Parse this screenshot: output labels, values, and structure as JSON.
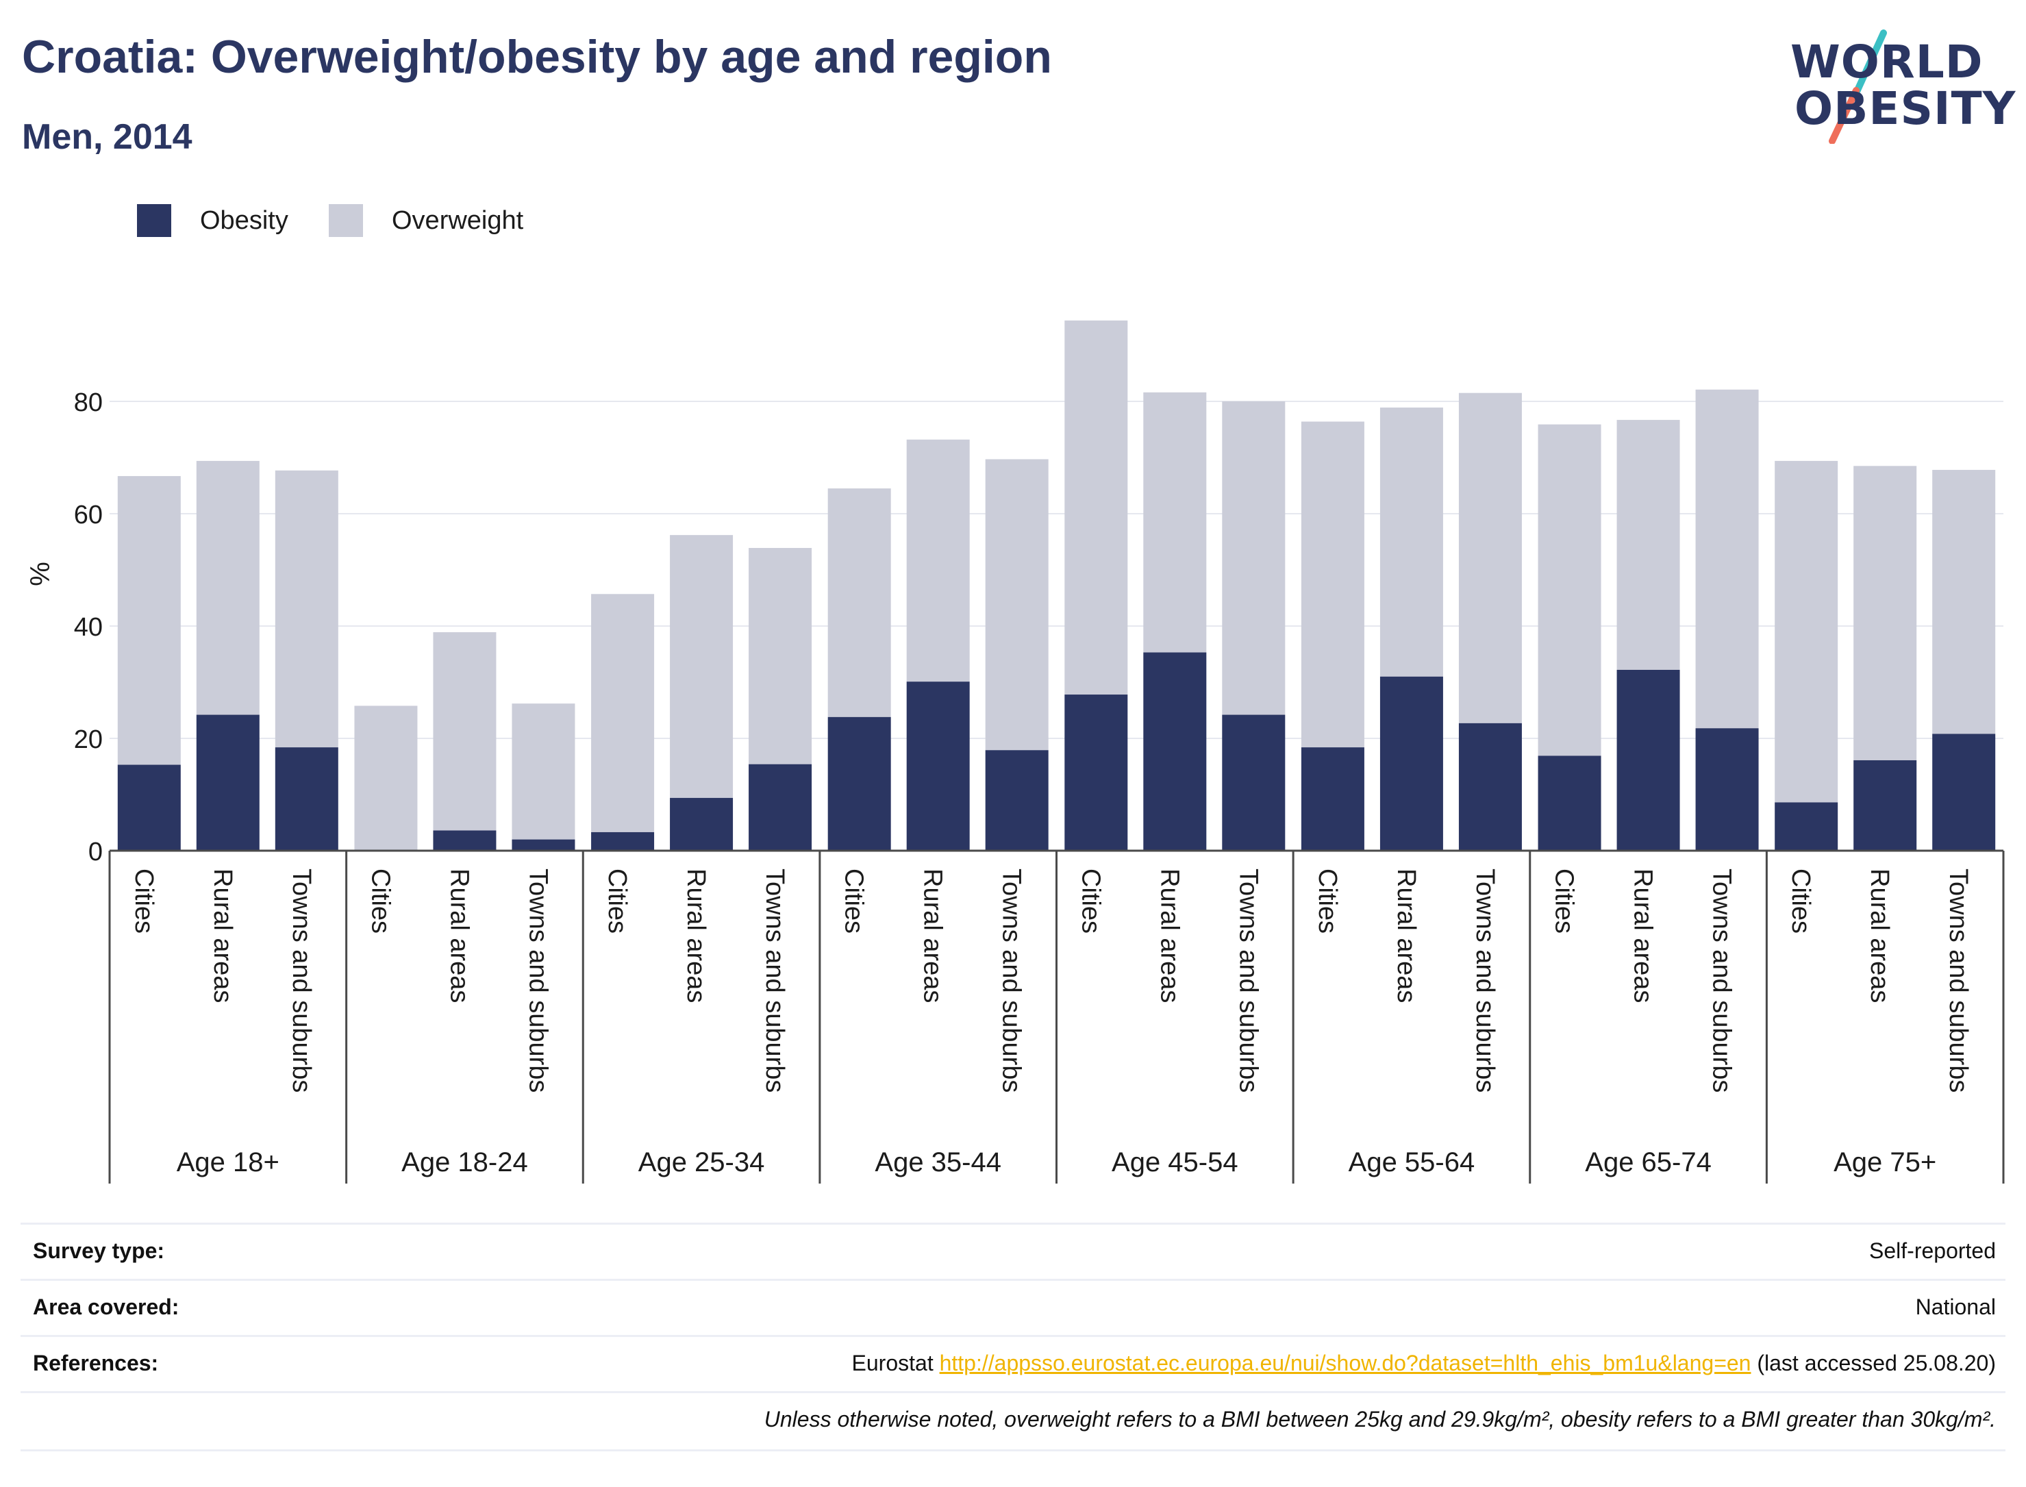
{
  "header": {
    "title": "Croatia: Overweight/obesity by age and region",
    "subtitle": "Men, 2014"
  },
  "logo": {
    "line1": "WORLD",
    "line2": "OBESITY",
    "colors": {
      "text": "#2b3662",
      "slash_top": "#3bbfc4",
      "slash_bottom": "#ef6e5a"
    }
  },
  "colors": {
    "obesity": "#2b3662",
    "overweight": "#cbcdd9",
    "grid": "#e6e8ef",
    "axis": "#4a4a4a",
    "link": "#f0b400"
  },
  "chart_data": {
    "type": "bar",
    "stacked": true,
    "title": "Croatia: Overweight/obesity by age and region",
    "subtitle": "Men, 2014",
    "ylabel": "%",
    "ylim": [
      0,
      100
    ],
    "yticks": [
      0,
      20,
      40,
      60,
      80
    ],
    "grid": true,
    "legend_position": "top-left",
    "groups": [
      {
        "label": "Age 18+",
        "categories": [
          "Cities",
          "Rural areas",
          "Towns and suburbs"
        ],
        "obesity": [
          15.3,
          24.2,
          18.4
        ],
        "overweight": [
          51.4,
          45.2,
          49.3
        ]
      },
      {
        "label": "Age 18-24",
        "categories": [
          "Cities",
          "Rural areas",
          "Towns and suburbs"
        ],
        "obesity": [
          0,
          3.6,
          2.0
        ],
        "overweight": [
          25.8,
          35.3,
          24.2
        ]
      },
      {
        "label": "Age 25-34",
        "categories": [
          "Cities",
          "Rural areas",
          "Towns and suburbs"
        ],
        "obesity": [
          3.3,
          9.4,
          15.4
        ],
        "overweight": [
          42.4,
          46.8,
          38.5
        ]
      },
      {
        "label": "Age 35-44",
        "categories": [
          "Cities",
          "Rural areas",
          "Towns and suburbs"
        ],
        "obesity": [
          23.8,
          30.1,
          17.9
        ],
        "overweight": [
          40.7,
          43.1,
          51.8
        ]
      },
      {
        "label": "Age 45-54",
        "categories": [
          "Cities",
          "Rural areas",
          "Towns and suburbs"
        ],
        "obesity": [
          27.8,
          35.3,
          24.2
        ],
        "overweight": [
          66.6,
          46.3,
          55.8
        ]
      },
      {
        "label": "Age 55-64",
        "categories": [
          "Cities",
          "Rural areas",
          "Towns and suburbs"
        ],
        "obesity": [
          18.4,
          31.0,
          22.7
        ],
        "overweight": [
          58.0,
          47.9,
          58.8
        ]
      },
      {
        "label": "Age 65-74",
        "categories": [
          "Cities",
          "Rural areas",
          "Towns and suburbs"
        ],
        "obesity": [
          16.9,
          32.2,
          21.8
        ],
        "overweight": [
          59.0,
          44.5,
          60.3
        ]
      },
      {
        "label": "Age 75+",
        "categories": [
          "Cities",
          "Rural areas",
          "Towns and suburbs"
        ],
        "obesity": [
          8.6,
          16.1,
          20.8
        ],
        "overweight": [
          60.8,
          52.4,
          47.0
        ]
      }
    ],
    "series": [
      {
        "name": "Obesity"
      },
      {
        "name": "Overweight"
      }
    ]
  },
  "info": {
    "survey_type_label": "Survey type:",
    "survey_type_value": "Self-reported",
    "area_label": "Area covered:",
    "area_value": "National",
    "references_label": "References:",
    "references_prefix": "Eurostat ",
    "references_link": "http://appsso.eurostat.ec.europa.eu/nui/show.do?dataset=hlth_ehis_bm1u&lang=en",
    "references_suffix": " (last accessed 25.08.20)",
    "note": "Unless otherwise noted, overweight refers to a BMI between 25kg and 29.9kg/m², obesity refers to a BMI greater than 30kg/m²."
  }
}
